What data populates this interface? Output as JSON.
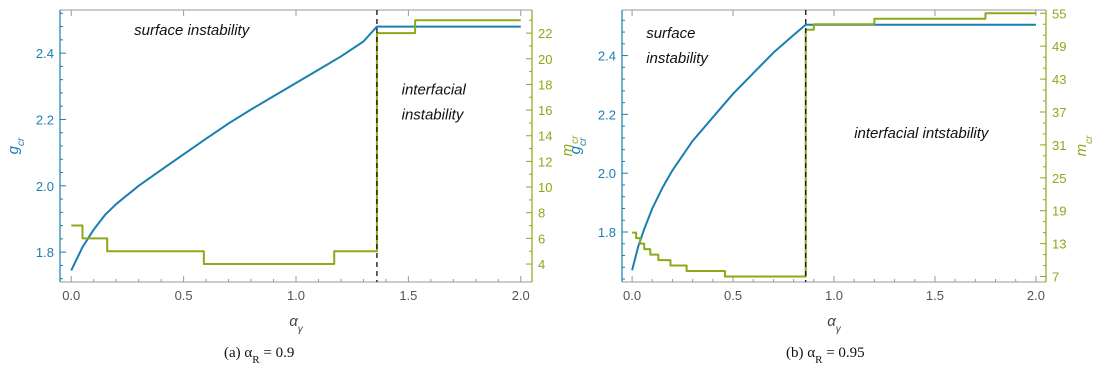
{
  "colors": {
    "g_axis": "#1a7fb0",
    "m_axis": "#8aaa1a",
    "axis": "#9a9a9a",
    "dashed": "#111111"
  },
  "chart_data": [
    {
      "type": "line",
      "panel_label": "(a) α",
      "panel_sub": "R",
      "panel_value": " = 0.9",
      "xlabel": "α",
      "xlabel_sub": "γ",
      "ylabel": "g",
      "ylabel_sub": "cr",
      "y2label": "m",
      "y2label_sub": "cr",
      "xlim": [
        -0.05,
        2.05
      ],
      "ylim": [
        1.71,
        2.53
      ],
      "y2lim": [
        2.6,
        23.8
      ],
      "x_ticks": [
        0.0,
        0.5,
        1.0,
        1.5,
        2.0
      ],
      "x_tick_labels": [
        "0.0",
        "0.5",
        "1.0",
        "1.5",
        "2.0"
      ],
      "y_ticks": [
        1.8,
        2.0,
        2.2,
        2.4
      ],
      "y_tick_labels": [
        "1.8",
        "2.0",
        "2.2",
        "2.4"
      ],
      "y2_ticks": [
        4,
        6,
        8,
        10,
        12,
        14,
        16,
        18,
        20,
        22
      ],
      "y2_tick_labels": [
        "4",
        "6",
        "8",
        "10",
        "12",
        "14",
        "16",
        "18",
        "20",
        "22"
      ],
      "transition_x": 1.36,
      "annotations": [
        {
          "lines": [
            "surface instability"
          ],
          "x": 0.28,
          "y": 2.455
        },
        {
          "lines": [
            "interfacial",
            "instability"
          ],
          "x": 1.47,
          "y": 2.275
        }
      ],
      "series": [
        {
          "axis": "left",
          "x": [
            0.0,
            0.05,
            0.1,
            0.15,
            0.2,
            0.3,
            0.4,
            0.5,
            0.6,
            0.7,
            0.8,
            0.9,
            1.0,
            1.1,
            1.2,
            1.3,
            1.36,
            2.0
          ],
          "y": [
            1.745,
            1.815,
            1.868,
            1.912,
            1.945,
            2.0,
            2.048,
            2.095,
            2.142,
            2.188,
            2.23,
            2.27,
            2.31,
            2.35,
            2.39,
            2.435,
            2.48,
            2.48
          ]
        },
        {
          "axis": "right",
          "step": true,
          "x": [
            0.0,
            0.05,
            0.16,
            0.59,
            1.17,
            1.36,
            1.53,
            2.0
          ],
          "y": [
            7,
            6,
            5,
            4,
            5,
            22,
            23,
            23
          ]
        }
      ]
    },
    {
      "type": "line",
      "panel_label": "(b) α",
      "panel_sub": "R",
      "panel_value": " = 0.95",
      "xlabel": "α",
      "xlabel_sub": "γ",
      "ylabel": "g",
      "ylabel_sub": "cr",
      "y2label": "m",
      "y2label_sub": "cr",
      "xlim": [
        -0.05,
        2.05
      ],
      "ylim": [
        1.63,
        2.555
      ],
      "y2lim": [
        6.0,
        55.6
      ],
      "x_ticks": [
        0.0,
        0.5,
        1.0,
        1.5,
        2.0
      ],
      "x_tick_labels": [
        "0.0",
        "0.5",
        "1.0",
        "1.5",
        "2.0"
      ],
      "y_ticks": [
        1.8,
        2.0,
        2.2,
        2.4
      ],
      "y_tick_labels": [
        "1.8",
        "2.0",
        "2.2",
        "2.4"
      ],
      "y2_ticks": [
        7,
        13,
        19,
        25,
        31,
        37,
        43,
        49,
        55
      ],
      "y2_tick_labels": [
        "7",
        "13",
        "19",
        "25",
        "31",
        "37",
        "43",
        "49",
        "55"
      ],
      "transition_x": 0.86,
      "annotations": [
        {
          "lines": [
            "surface",
            "instability"
          ],
          "x": 0.07,
          "y": 2.46
        },
        {
          "lines": [
            "interfacial intstability"
          ],
          "x": 1.1,
          "y": 2.12
        }
      ],
      "series": [
        {
          "axis": "left",
          "x": [
            0.0,
            0.03,
            0.06,
            0.1,
            0.15,
            0.2,
            0.3,
            0.4,
            0.5,
            0.6,
            0.7,
            0.8,
            0.86,
            2.0
          ],
          "y": [
            1.67,
            1.75,
            1.81,
            1.88,
            1.95,
            2.01,
            2.11,
            2.19,
            2.27,
            2.34,
            2.41,
            2.47,
            2.505,
            2.505
          ]
        },
        {
          "axis": "right",
          "step": true,
          "x": [
            0.0,
            0.02,
            0.04,
            0.06,
            0.09,
            0.13,
            0.19,
            0.27,
            0.46,
            0.86,
            0.9,
            1.2,
            1.75,
            2.0
          ],
          "y": [
            15,
            14,
            13,
            12,
            11,
            10,
            9,
            8,
            7,
            52,
            53,
            54,
            55,
            55
          ]
        }
      ]
    }
  ]
}
